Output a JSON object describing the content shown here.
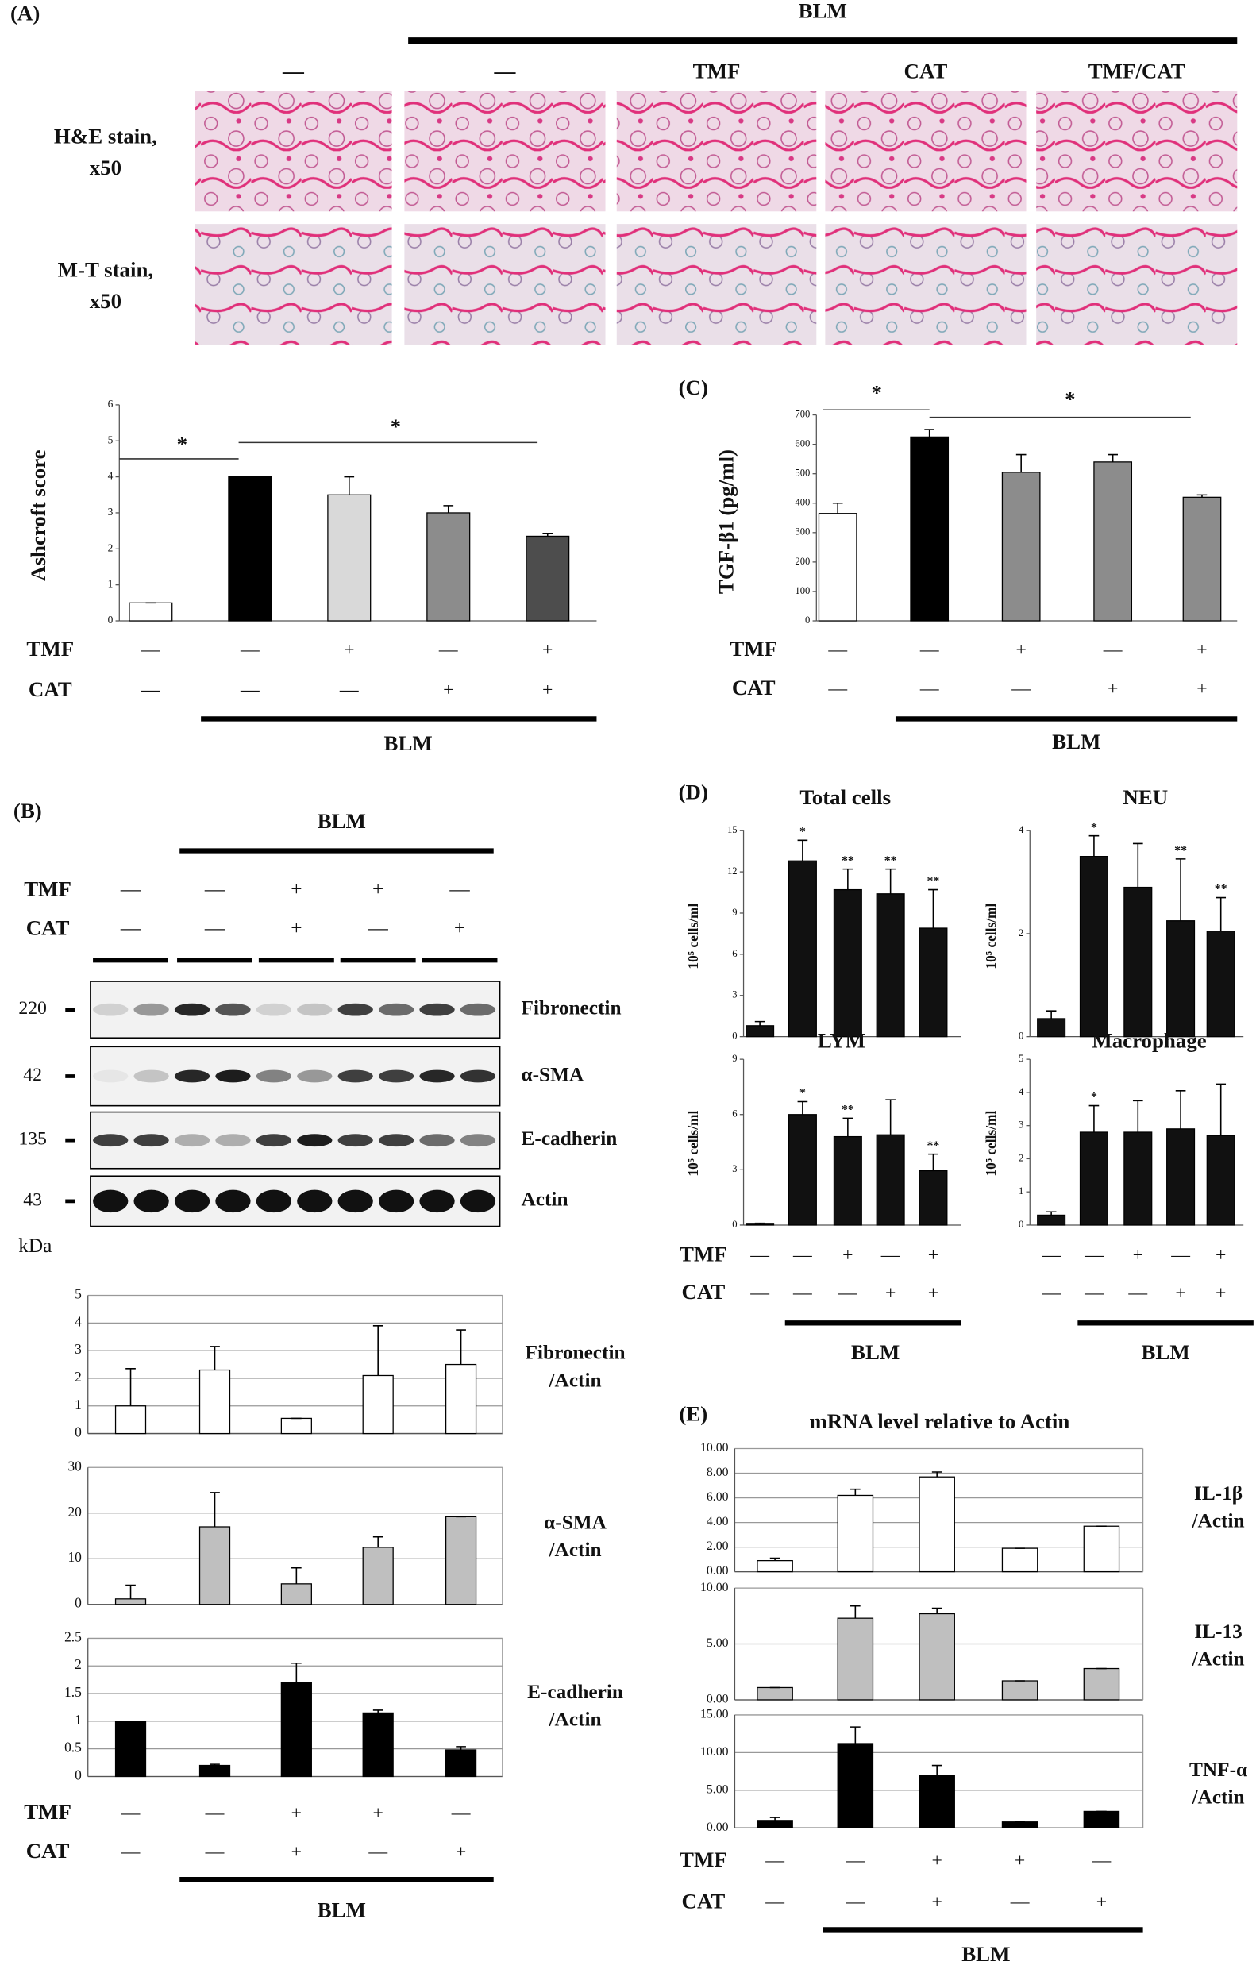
{
  "panel_labels": [
    "(A)",
    "(B)",
    "(C)",
    "(D)",
    "(E)"
  ],
  "histology": {
    "group_label": "BLM",
    "columns": [
      "—",
      "—",
      "TMF",
      "CAT",
      "TMF/CAT"
    ],
    "rows": [
      [
        "H&E stain,",
        "x50"
      ],
      [
        "M-T stain,",
        "x50"
      ]
    ]
  },
  "western_blot": {
    "group_label": "BLM",
    "treatments": [
      {
        "name": "TMF",
        "marks": [
          "—",
          "—",
          "+",
          "+",
          "—"
        ]
      },
      {
        "name": "CAT",
        "marks": [
          "—",
          "—",
          "+",
          "—",
          "+"
        ]
      }
    ],
    "bands": [
      {
        "kda": 220,
        "name": "Fibronectin"
      },
      {
        "kda": 42,
        "name": "α-SMA"
      },
      {
        "kda": 135,
        "name": "E-cadherin"
      },
      {
        "kda": 43,
        "name": "Actin"
      }
    ],
    "kda_unit": "kDa"
  },
  "chart_data": [
    {
      "type": "bar",
      "ylabel": "Ashcroft  score",
      "values": [
        0.5,
        4,
        3.5,
        3,
        2.35
      ],
      "errors": [
        0,
        0,
        0.5,
        0.2,
        0.08
      ],
      "colors": [
        "#ffffff",
        "#000000",
        "#d9d9d9",
        "#8c8c8c",
        "#4d4d4d"
      ],
      "ylim": [
        0,
        6
      ],
      "yticks": [
        0,
        1,
        2,
        3,
        4,
        5,
        6
      ],
      "grid": false,
      "significance": [
        "*",
        "*"
      ],
      "group_label": "BLM",
      "treatments": [
        {
          "name": "TMF",
          "marks": [
            "—",
            "—",
            "+",
            "—",
            "+"
          ]
        },
        {
          "name": "CAT",
          "marks": [
            "—",
            "—",
            "—",
            "+",
            "+"
          ]
        }
      ]
    },
    {
      "type": "bar",
      "ylabel": "TGF-β1  (pg/ml)",
      "values": [
        365,
        625,
        505,
        540,
        420
      ],
      "errors": [
        35,
        25,
        60,
        25,
        8
      ],
      "colors": [
        "#ffffff",
        "#000000",
        "#8c8c8c",
        "#8c8c8c",
        "#8c8c8c"
      ],
      "ylim": [
        0,
        700
      ],
      "yticks": [
        0,
        100,
        200,
        300,
        400,
        500,
        600,
        700
      ],
      "grid": false,
      "significance": [
        "*",
        "*"
      ],
      "group_label": "BLM",
      "treatments": [
        {
          "name": "TMF",
          "marks": [
            "—",
            "—",
            "+",
            "—",
            "+"
          ]
        },
        {
          "name": "CAT",
          "marks": [
            "—",
            "—",
            "—",
            "+",
            "+"
          ]
        }
      ]
    },
    {
      "type": "bar",
      "title": "Total cells",
      "ylabel": "10⁵ cells/ml",
      "values": [
        0.8,
        12.8,
        10.7,
        10.4,
        7.9
      ],
      "errors": [
        0.3,
        1.5,
        1.5,
        1.8,
        2.8
      ],
      "colors": [
        "#111111",
        "#111111",
        "#111111",
        "#111111",
        "#111111"
      ],
      "ylim": [
        0,
        15
      ],
      "yticks": [
        0,
        3,
        6,
        9,
        12,
        15
      ],
      "grid": false,
      "annotations": [
        null,
        "*",
        "**",
        "**",
        "**"
      ]
    },
    {
      "type": "bar",
      "title": "NEU",
      "ylabel": "10⁵ cells/ml",
      "values": [
        0.35,
        3.5,
        2.9,
        2.25,
        2.05
      ],
      "errors": [
        0.15,
        0.4,
        0.85,
        1.2,
        0.65
      ],
      "colors": [
        "#111111",
        "#111111",
        "#111111",
        "#111111",
        "#111111"
      ],
      "ylim": [
        0,
        4
      ],
      "yticks": [
        0,
        2,
        4
      ],
      "grid": false,
      "annotations": [
        null,
        "*",
        null,
        "**",
        "**"
      ]
    },
    {
      "type": "bar",
      "title": "LYM",
      "ylabel": "10⁵ cells/ml",
      "values": [
        0.05,
        6,
        4.8,
        4.9,
        2.95
      ],
      "errors": [
        0.05,
        0.7,
        1,
        1.9,
        0.9
      ],
      "colors": [
        "#111111",
        "#111111",
        "#111111",
        "#111111",
        "#111111"
      ],
      "ylim": [
        0,
        9
      ],
      "yticks": [
        0,
        3,
        6,
        9
      ],
      "grid": false,
      "annotations": [
        null,
        "*",
        "**",
        null,
        "**"
      ],
      "group_label": "BLM",
      "treatments": [
        {
          "name": "TMF",
          "marks": [
            "—",
            "—",
            "+",
            "—",
            "+"
          ]
        },
        {
          "name": "CAT",
          "marks": [
            "—",
            "—",
            "—",
            "+",
            "+"
          ]
        }
      ]
    },
    {
      "type": "bar",
      "title": "Macrophage",
      "ylabel": "10⁵ cells/ml",
      "values": [
        0.3,
        2.8,
        2.8,
        2.9,
        2.7
      ],
      "errors": [
        0.1,
        0.8,
        0.95,
        1.15,
        1.55
      ],
      "colors": [
        "#111111",
        "#111111",
        "#111111",
        "#111111",
        "#111111"
      ],
      "ylim": [
        0,
        5
      ],
      "yticks": [
        0,
        1,
        2,
        3,
        4,
        5
      ],
      "grid": false,
      "annotations": [
        null,
        "*",
        null,
        null,
        null
      ],
      "group_label": "BLM",
      "treatments": [
        {
          "marks": [
            "—",
            "—",
            "+",
            "—",
            "+"
          ]
        },
        {
          "marks": [
            "—",
            "—",
            "—",
            "+",
            "+"
          ]
        }
      ]
    },
    {
      "type": "bar",
      "label": [
        "Fibronectin",
        "/Actin"
      ],
      "values": [
        1,
        2.3,
        0.55,
        2.1,
        2.5
      ],
      "errors": [
        1.35,
        0.85,
        0,
        1.8,
        1.25
      ],
      "colors": [
        "#ffffff",
        "#ffffff",
        "#ffffff",
        "#ffffff",
        "#ffffff"
      ],
      "ylim": [
        0,
        5
      ],
      "yticks": [
        0,
        1,
        2,
        3,
        4,
        5
      ],
      "grid": true
    },
    {
      "type": "bar",
      "label": [
        "α-SMA",
        "/Actin"
      ],
      "values": [
        1.2,
        17,
        4.5,
        12.5,
        19.2
      ],
      "errors": [
        3,
        7.5,
        3.5,
        2.3,
        0
      ],
      "colors": [
        "#bfbfbf",
        "#bfbfbf",
        "#bfbfbf",
        "#bfbfbf",
        "#bfbfbf"
      ],
      "ylim": [
        0,
        30
      ],
      "yticks": [
        0,
        10,
        20,
        30
      ],
      "grid": true
    },
    {
      "type": "bar",
      "label": [
        "E-cadherin",
        "/Actin"
      ],
      "values": [
        1,
        0.2,
        1.7,
        1.15,
        0.48
      ],
      "errors": [
        0,
        0.02,
        0.35,
        0.05,
        0.06
      ],
      "colors": [
        "#000000",
        "#000000",
        "#000000",
        "#000000",
        "#000000"
      ],
      "ylim": [
        0,
        2.5
      ],
      "yticks": [
        0,
        0.5,
        1,
        1.5,
        2,
        2.5
      ],
      "grid": true,
      "group_label": "BLM",
      "treatments": [
        {
          "name": "TMF",
          "marks": [
            "—",
            "—",
            "+",
            "+",
            "—"
          ]
        },
        {
          "name": "CAT",
          "marks": [
            "—",
            "—",
            "+",
            "—",
            "+"
          ]
        }
      ]
    },
    {
      "type": "bar",
      "title": "mRNA level relative to Actin",
      "label": [
        "IL-1β",
        "/Actin"
      ],
      "values": [
        0.9,
        6.2,
        7.7,
        1.9,
        3.7
      ],
      "errors": [
        0.2,
        0.5,
        0.4,
        0,
        0
      ],
      "colors": [
        "#ffffff",
        "#ffffff",
        "#ffffff",
        "#ffffff",
        "#ffffff"
      ],
      "ylim": [
        0,
        10
      ],
      "yticks": [
        {
          "value": 0,
          "label": "0.00"
        },
        {
          "value": 2,
          "label": "2.00"
        },
        {
          "value": 4,
          "label": "4.00"
        },
        {
          "value": 6,
          "label": "6.00"
        },
        {
          "value": 8,
          "label": "8.00"
        },
        {
          "value": 10,
          "label": "10.00"
        }
      ],
      "grid": true
    },
    {
      "type": "bar",
      "label": [
        "IL-13",
        "/Actin"
      ],
      "values": [
        1.1,
        7.3,
        7.7,
        1.7,
        2.8
      ],
      "errors": [
        0,
        1.1,
        0.5,
        0,
        0
      ],
      "colors": [
        "#bfbfbf",
        "#bfbfbf",
        "#bfbfbf",
        "#bfbfbf",
        "#bfbfbf"
      ],
      "ylim": [
        0,
        10
      ],
      "yticks": [
        {
          "value": 0,
          "label": "0.00"
        },
        {
          "value": 5,
          "label": "5.00"
        },
        {
          "value": 10,
          "label": "10.00"
        }
      ],
      "grid": true
    },
    {
      "type": "bar",
      "label": [
        "TNF-α",
        "/Actin"
      ],
      "values": [
        1,
        11.2,
        7,
        0.8,
        2.2
      ],
      "errors": [
        0.4,
        2.2,
        1.3,
        0,
        0
      ],
      "colors": [
        "#000000",
        "#000000",
        "#000000",
        "#000000",
        "#000000"
      ],
      "ylim": [
        0,
        15
      ],
      "yticks": [
        {
          "value": 0,
          "label": "0.00"
        },
        {
          "value": 5,
          "label": "5.00"
        },
        {
          "value": 10,
          "label": "10.00"
        },
        {
          "value": 15,
          "label": "15.00"
        }
      ],
      "grid": true,
      "group_label": "BLM",
      "treatments": [
        {
          "name": "TMF",
          "marks": [
            "—",
            "—",
            "+",
            "+",
            "—"
          ]
        },
        {
          "name": "CAT",
          "marks": [
            "—",
            "—",
            "+",
            "—",
            "+"
          ]
        }
      ]
    }
  ]
}
